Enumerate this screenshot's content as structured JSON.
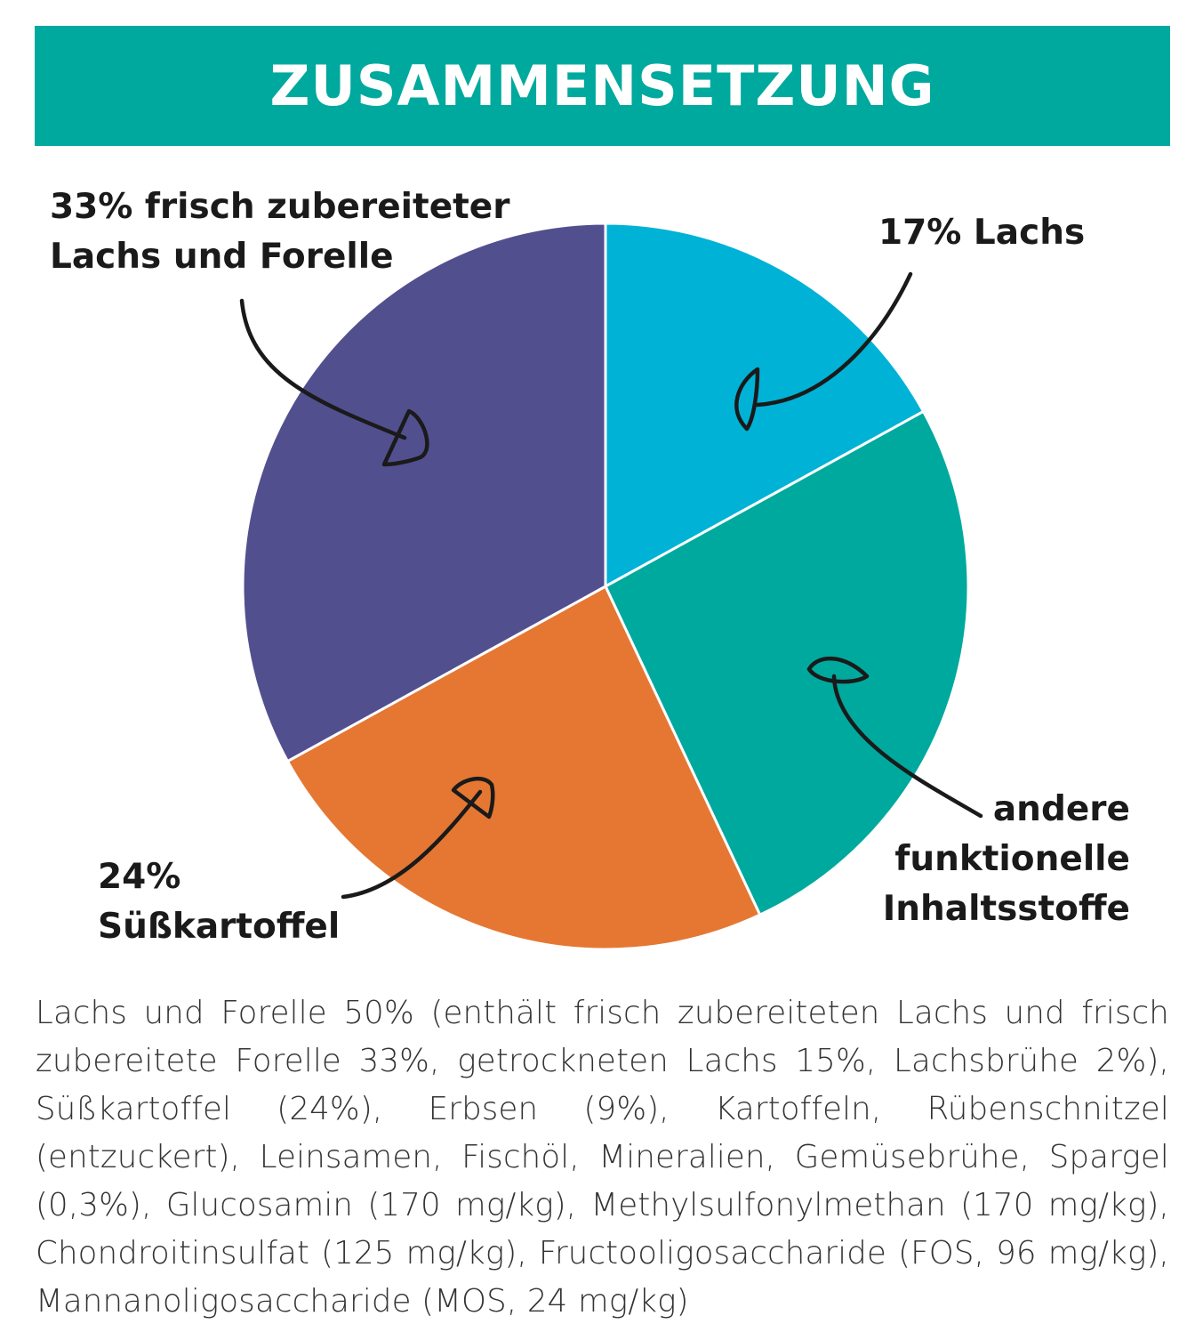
{
  "header": {
    "title": "ZUSAMMENSETZUNG"
  },
  "chart_data": {
    "type": "pie",
    "title": "ZUSAMMENSETZUNG",
    "slices": [
      {
        "label": "17% Lachs",
        "value": 17,
        "color": "#00b2d6"
      },
      {
        "label": "andere funktionelle Inhaltsstoffe",
        "value": 26,
        "color": "#00a99d"
      },
      {
        "label": "24% Süßkartoffel",
        "value": 24,
        "color": "#e57733"
      },
      {
        "label": "33% frisch zubereiteter Lachs und Forelle",
        "value": 33,
        "color": "#524f8f"
      }
    ]
  },
  "labels": {
    "purple_line1": "33% frisch zubereiteter",
    "purple_line2": "Lachs und Forelle",
    "blue": "17% Lachs",
    "teal_line1": "andere",
    "teal_line2": "funktionelle",
    "teal_line3": "Inhaltsstoffe",
    "orange_line1": "24%",
    "orange_line2": "Süßkartoffel"
  },
  "ingredients": "Lachs und Forelle 50% (enthält frisch zubereiteten Lachs und frisch zubereitete Forelle 33%, getrockneten Lachs 15%, Lachsbrühe 2%), Süßkartoffel (24%), Erbsen (9%), Kartoffeln, Rübenschnitzel (entzuckert), Leinsamen, Fischöl, Mineralien, Gemüsebrühe, Spargel (0,3%), Glucosamin (170 mg/kg), Methylsulfonylmethan (170 mg/kg), Chondroitinsulfat (125 mg/kg), Fructooligosaccharide (FOS, 96 mg/kg), Mannanoligosaccharide (MOS, 24 mg/kg)"
}
